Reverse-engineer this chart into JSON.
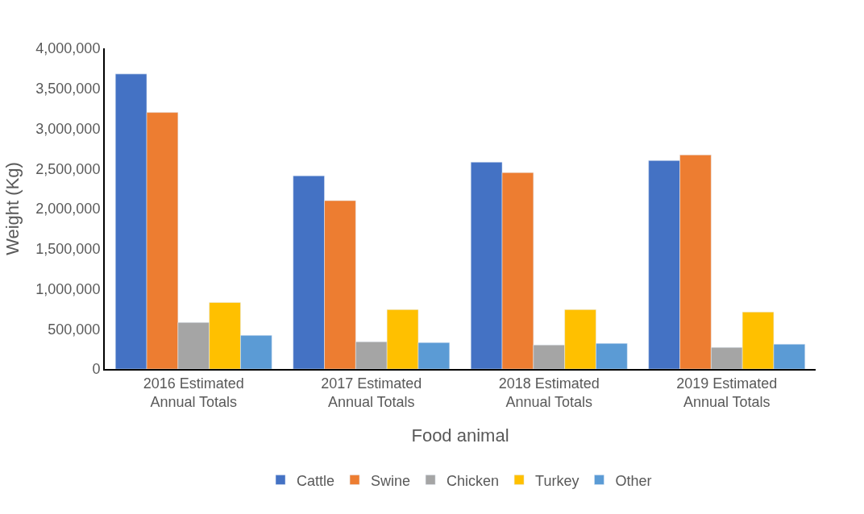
{
  "chart_data": {
    "type": "bar",
    "xlabel": "Food animal",
    "ylabel": "Weight (Kg)",
    "categories": [
      "2016 Estimated Annual Totals",
      "2017 Estimated Annual Totals",
      "2018 Estimated Annual Totals",
      "2019 Estimated Annual Totals"
    ],
    "series": [
      {
        "name": "Cattle",
        "color": "#4472c4",
        "values": [
          3680000,
          2410000,
          2580000,
          2600000
        ]
      },
      {
        "name": "Swine",
        "color": "#ed7d31",
        "values": [
          3200000,
          2100000,
          2450000,
          2670000
        ]
      },
      {
        "name": "Chicken",
        "color": "#a5a5a5",
        "values": [
          580000,
          340000,
          300000,
          270000
        ]
      },
      {
        "name": "Turkey",
        "color": "#ffc000",
        "values": [
          830000,
          740000,
          740000,
          710000
        ]
      },
      {
        "name": "Other",
        "color": "#5b9bd5",
        "values": [
          420000,
          330000,
          320000,
          310000
        ]
      }
    ],
    "ylim": [
      0,
      4000000
    ],
    "yticks": [
      0,
      {
        "value": 500000,
        "label": "500,000"
      },
      {
        "value": 1000000,
        "label": "1,000,000"
      },
      {
        "value": 1500000,
        "label": "1,500,000"
      },
      {
        "value": 2000000,
        "label": "2,000,000"
      },
      {
        "value": 2500000,
        "label": "2,500,000"
      },
      {
        "value": 3000000,
        "label": "3,000,000"
      },
      {
        "value": 3500000,
        "label": "3,500,000"
      },
      {
        "value": 4000000,
        "label": "4,000,000"
      }
    ],
    "legend": "bottom"
  }
}
